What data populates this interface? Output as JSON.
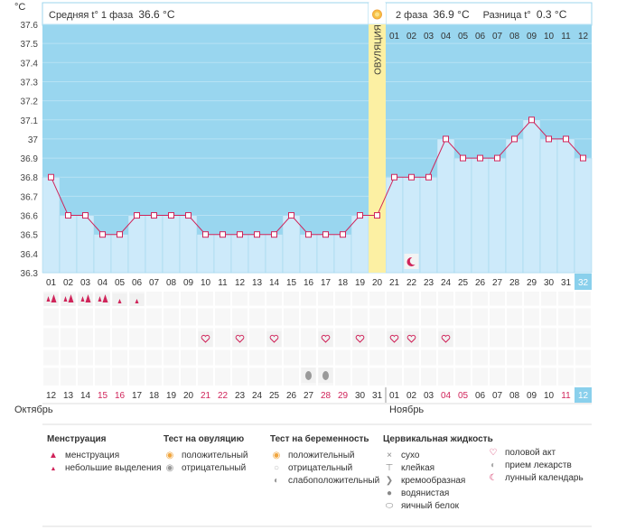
{
  "header": {
    "unit": "°C",
    "phase1_label": "Средняя t° 1 фаза",
    "phase1_value": "36.6 °C",
    "phase2_label": "2 фаза",
    "phase2_value": "36.9 °C",
    "diff_label": "Разница t°",
    "diff_value": "0.3 °C",
    "ovulation_label": "ОВУЛЯЦИЯ"
  },
  "chart_data": {
    "type": "line",
    "ylim": [
      36.3,
      37.6
    ],
    "yticks": [
      "37.6",
      "37.5",
      "37.4",
      "37.3",
      "37.2",
      "37.1",
      "37",
      "36.9",
      "36.8",
      "36.7",
      "36.6",
      "36.5",
      "36.4",
      "36.3"
    ],
    "cycle_days": [
      "01",
      "02",
      "03",
      "04",
      "05",
      "06",
      "07",
      "08",
      "09",
      "10",
      "11",
      "12",
      "13",
      "14",
      "15",
      "16",
      "17",
      "18",
      "19",
      "20",
      "21",
      "22",
      "23",
      "24",
      "25",
      "26",
      "27",
      "28",
      "29",
      "30",
      "31",
      "32"
    ],
    "phase2_days": [
      "01",
      "02",
      "03",
      "04",
      "05",
      "06",
      "07",
      "08",
      "09",
      "10",
      "11",
      "12"
    ],
    "values": [
      36.8,
      36.6,
      36.6,
      36.5,
      36.5,
      36.6,
      36.6,
      36.6,
      36.6,
      36.5,
      36.5,
      36.5,
      36.5,
      36.5,
      36.6,
      36.5,
      36.5,
      36.5,
      36.6,
      36.6,
      36.8,
      36.8,
      36.8,
      37.0,
      36.9,
      36.9,
      36.9,
      37.0,
      37.1,
      37.0,
      37.0,
      36.9
    ],
    "ovulation_day": 20,
    "current_day": 32,
    "dates": [
      "12",
      "13",
      "14",
      "15",
      "16",
      "17",
      "18",
      "19",
      "20",
      "21",
      "22",
      "23",
      "24",
      "25",
      "26",
      "27",
      "28",
      "29",
      "30",
      "31",
      "01",
      "02",
      "03",
      "04",
      "05",
      "06",
      "07",
      "08",
      "09",
      "10",
      "11",
      "12"
    ],
    "weekend_dates": [
      3,
      4,
      9,
      10,
      16,
      17,
      23,
      24,
      30,
      31
    ],
    "month_left": "Октябрь",
    "month_right": "Ноябрь",
    "menstruation_days": [
      1,
      2,
      3,
      4,
      5,
      6
    ],
    "intercourse_days": [
      10,
      12,
      14,
      17,
      19,
      21,
      22,
      24
    ],
    "cervical_days": [
      16,
      17
    ],
    "moon_day": 22,
    "colors": {
      "sky": "#99d6ef",
      "bar": "#cdeafa",
      "ovulation": "#fcf0a3",
      "line": "#d0245a",
      "current": "#8ad0ec",
      "weekend": "#d0245a"
    }
  },
  "legend": {
    "menstruation": {
      "title": "Менструация",
      "items": [
        "менструация",
        "небольшие выделения"
      ]
    },
    "ovulation_test": {
      "title": "Тест на овуляцию",
      "items": [
        "положительный",
        "отрицательный"
      ]
    },
    "pregnancy_test": {
      "title": "Тест на беременность",
      "items": [
        "положительный",
        "отрицательный",
        "слабоположительный"
      ]
    },
    "cervical": {
      "title": "Цервикальная жидкость",
      "items": [
        "сухо",
        "клейкая",
        "кремообразная",
        "водянистая",
        "яичный белок"
      ]
    },
    "other": {
      "items": [
        "половой акт",
        "прием лекарств",
        "лунный календарь"
      ]
    }
  }
}
